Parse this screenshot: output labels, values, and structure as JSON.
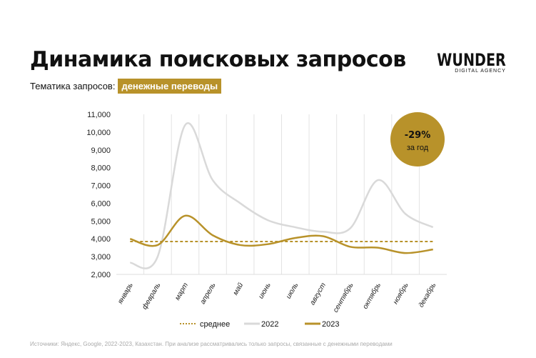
{
  "header": {
    "title": "Динамика поисковых запросов",
    "subtitle_label": "Тематика запросов:",
    "topic": "денежные переводы"
  },
  "logo": {
    "text": "WUNDER",
    "sub": "DIGITAL AGENCY"
  },
  "badge": {
    "value": "-29%",
    "label": "за год",
    "color": "#b8922a"
  },
  "source": "Источники: Яндекс, Google, 2022-2023, Казахстан. При анализе рассматривались только запросы, связанные с денежными переводами",
  "chart_data": {
    "type": "line",
    "categories": [
      "январь",
      "февраль",
      "март",
      "апрель",
      "май",
      "июнь",
      "июль",
      "август",
      "сентябрь",
      "октябрь",
      "ноябрь",
      "декабрь"
    ],
    "ylim": [
      2000,
      11000
    ],
    "yticks": [
      "2,000",
      "3,000",
      "4,000",
      "5,000",
      "6,000",
      "7,000",
      "8,000",
      "9,000",
      "10,000",
      "11,000"
    ],
    "grid": "vertical",
    "legend": "bottom",
    "series": [
      {
        "name": "среднее",
        "values": [
          3850,
          3850,
          3850,
          3850,
          3850,
          3850,
          3850,
          3850,
          3850,
          3850,
          3850,
          3850
        ],
        "color": "#b8922a",
        "style": "dotted"
      },
      {
        "name": "2022",
        "values": [
          2650,
          3000,
          10400,
          7300,
          6000,
          5050,
          4650,
          4400,
          4600,
          7300,
          5400,
          4650
        ],
        "color": "#d9d9d9",
        "style": "solid"
      },
      {
        "name": "2023",
        "values": [
          4000,
          3650,
          5300,
          4200,
          3650,
          3700,
          4050,
          4150,
          3550,
          3500,
          3200,
          3400
        ],
        "color": "#b8922a",
        "style": "solid"
      }
    ]
  }
}
